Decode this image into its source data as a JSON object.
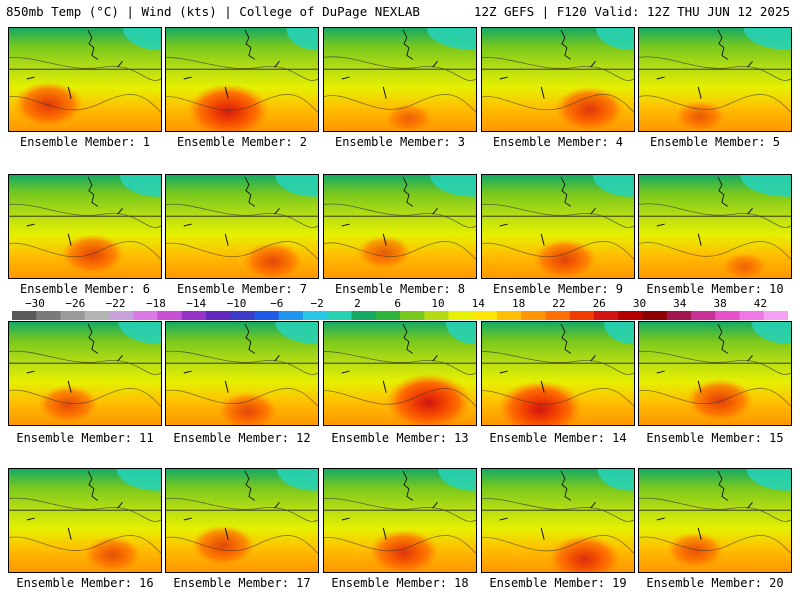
{
  "header": {
    "left": "850mb Temp (°C) | Wind (kts) | College of DuPage NEXLAB",
    "right": "12Z GEFS | F120 Valid: 12Z THU JUN 12 2025"
  },
  "panels": [
    {
      "label": "Ensemble Member: 1",
      "heat": 1.1
    },
    {
      "label": "Ensemble Member: 2",
      "heat": 1.5
    },
    {
      "label": "Ensemble Member: 3",
      "heat": 0.4
    },
    {
      "label": "Ensemble Member: 4",
      "heat": 1.1
    },
    {
      "label": "Ensemble Member: 5",
      "heat": 0.5
    },
    {
      "label": "Ensemble Member: 6",
      "heat": 0.9
    },
    {
      "label": "Ensemble Member: 7",
      "heat": 0.8
    },
    {
      "label": "Ensemble Member: 8",
      "heat": 0.6
    },
    {
      "label": "Ensemble Member: 9",
      "heat": 0.9
    },
    {
      "label": "Ensemble Member: 10",
      "heat": 0.3
    },
    {
      "label": "Ensemble Member: 11",
      "heat": 0.8
    },
    {
      "label": "Ensemble Member: 12",
      "heat": 0.8
    },
    {
      "label": "Ensemble Member: 13",
      "heat": 1.6
    },
    {
      "label": "Ensemble Member: 14",
      "heat": 1.6
    },
    {
      "label": "Ensemble Member: 15",
      "heat": 1.0
    },
    {
      "label": "Ensemble Member: 16",
      "heat": 0.7
    },
    {
      "label": "Ensemble Member: 17",
      "heat": 0.9
    },
    {
      "label": "Ensemble Member: 18",
      "heat": 1.1
    },
    {
      "label": "Ensemble Member: 19",
      "heat": 1.2
    },
    {
      "label": "Ensemble Member: 20",
      "heat": 0.7
    }
  ],
  "colorbar": {
    "ticks": [
      "−30",
      "−26",
      "−22",
      "−18",
      "−14",
      "−10",
      "−6",
      "−2",
      "2",
      "6",
      "10",
      "14",
      "18",
      "22",
      "26",
      "30",
      "34",
      "38",
      "42"
    ],
    "colors": [
      "#5a5a5a",
      "#7a7a7a",
      "#9a9a9a",
      "#b4b4b4",
      "#c8a0dc",
      "#dc78e6",
      "#c850d2",
      "#9632c8",
      "#6428be",
      "#3c3cc8",
      "#1e5ae6",
      "#1e96f0",
      "#28c8e6",
      "#28d2b4",
      "#14aa64",
      "#2db43c",
      "#78c81e",
      "#b4dc14",
      "#e6f000",
      "#ffe600",
      "#ffbe00",
      "#ff9600",
      "#ff6e00",
      "#f03c00",
      "#d21414",
      "#b40000",
      "#8c0000",
      "#a01450",
      "#c83296",
      "#e650c8",
      "#f078e6",
      "#f5a0f0"
    ]
  }
}
